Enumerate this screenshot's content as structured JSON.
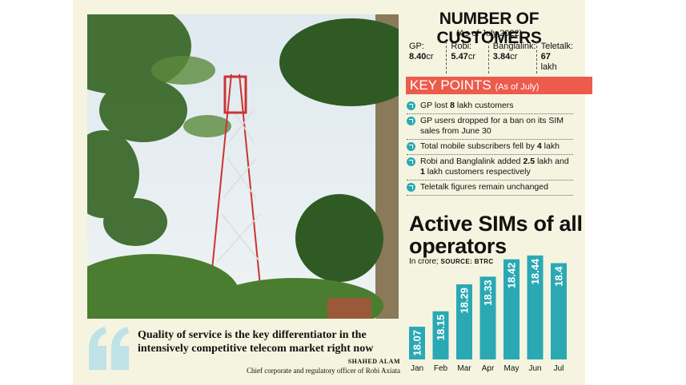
{
  "customers": {
    "title": "NUMBER OF CUSTOMERS",
    "subtitle": "(As of July 2022)",
    "items": [
      {
        "label": "GP:",
        "value": "8.40",
        "unit": "cr"
      },
      {
        "label": "Robi:",
        "value": "5.47",
        "unit": "cr"
      },
      {
        "label": "Banglalink:",
        "value": "3.84",
        "unit": "cr"
      },
      {
        "label": "Teletalk:",
        "value": "67",
        "unit": "lakh"
      }
    ]
  },
  "key_points": {
    "title": "KEY POINTS",
    "subtitle": "(As of July)",
    "items": [
      {
        "pre": "GP lost ",
        "bold": "8",
        "post": " lakh customers"
      },
      {
        "pre": "GP users dropped for a ban on its SIM sales from June 30",
        "bold": "",
        "post": ""
      },
      {
        "pre": "Total mobile subscribers fell by ",
        "bold": "4",
        "post": " lakh"
      },
      {
        "pre": "Robi and Banglalink added ",
        "bold": "2.5",
        "post": " lakh and ",
        "bold2": "1",
        "post2": " lakh customers respectively"
      },
      {
        "pre": "Teletalk figures remain unchanged",
        "bold": "",
        "post": ""
      }
    ]
  },
  "chart_data": {
    "type": "bar",
    "title": "Active SIMs of all operators",
    "unit_label": "In crore;",
    "source_label": "SOURCE: BTRC",
    "categories": [
      "Jan",
      "Feb",
      "Mar",
      "Apr",
      "May",
      "Jun",
      "Jul"
    ],
    "values": [
      18.07,
      18.15,
      18.29,
      18.33,
      18.42,
      18.44,
      18.4
    ],
    "value_labels": [
      "18.07",
      "18.15",
      "18.29",
      "18.33",
      "18.42",
      "18.44",
      "18.4"
    ],
    "bar_color": "#2aa9b4",
    "grid": false
  },
  "quote": {
    "text": "Quality of service is the key differentiator in the intensively competitive telecom market right now",
    "author": "SHAHED ALAM",
    "role": "Chief corporate and regulatory officer of Robi Axiata"
  },
  "colors": {
    "accent_red": "#ec5b4b",
    "teal": "#2aa9b4",
    "panel_bg": "#f4f4e0",
    "quote_mark": "#bfe2e6"
  },
  "photo": {
    "subject": "telecom-tower-photo"
  }
}
